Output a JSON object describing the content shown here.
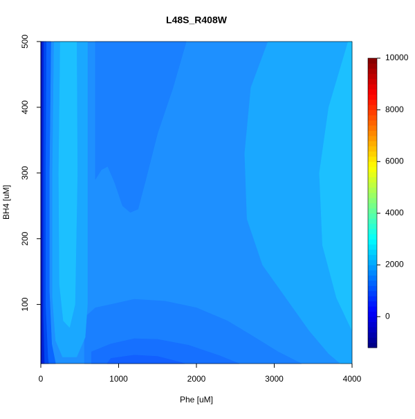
{
  "chart_data": {
    "type": "filled-contour",
    "title": "L48S_R408W",
    "x_label": "Phe [uM]",
    "y_label": "BH4 [uM]",
    "xlim": [
      0,
      4000
    ],
    "ylim": [
      10,
      500
    ],
    "xticks": [
      0,
      1000,
      2000,
      3000,
      4000
    ],
    "yticks": [
      100,
      200,
      300,
      400,
      500
    ],
    "base": {
      "level": 1800,
      "color": "#1e90ff"
    },
    "regions": [
      {
        "level": 1600,
        "color": "#1a80ff",
        "points": [
          [
            700,
            500
          ],
          [
            700,
            290
          ],
          [
            780,
            305
          ],
          [
            860,
            310
          ],
          [
            950,
            285
          ],
          [
            1050,
            250
          ],
          [
            1150,
            240
          ],
          [
            1250,
            245
          ],
          [
            1350,
            290
          ],
          [
            1500,
            360
          ],
          [
            1700,
            430
          ],
          [
            1870,
            500
          ]
        ]
      },
      {
        "level": 1600,
        "color": "#1a80ff",
        "points": [
          [
            560,
            10
          ],
          [
            560,
            80
          ],
          [
            700,
            95
          ],
          [
            900,
            100
          ],
          [
            1200,
            108
          ],
          [
            1600,
            105
          ],
          [
            2000,
            95
          ],
          [
            2400,
            75
          ],
          [
            2750,
            50
          ],
          [
            3050,
            28
          ],
          [
            3350,
            10
          ]
        ]
      },
      {
        "level": 1400,
        "color": "#1670ff",
        "points": [
          [
            650,
            10
          ],
          [
            650,
            28
          ],
          [
            900,
            40
          ],
          [
            1200,
            48
          ],
          [
            1500,
            47
          ],
          [
            1900,
            38
          ],
          [
            2300,
            22
          ],
          [
            2550,
            10
          ]
        ]
      },
      {
        "level": 1200,
        "color": "#1260ff",
        "points": [
          [
            850,
            10
          ],
          [
            900,
            18
          ],
          [
            1200,
            23
          ],
          [
            1500,
            21
          ],
          [
            1800,
            12
          ],
          [
            1850,
            10
          ]
        ]
      },
      {
        "level": 2000,
        "color": "#1aa8ff",
        "points": [
          [
            2920,
            500
          ],
          [
            2700,
            430
          ],
          [
            2620,
            330
          ],
          [
            2650,
            230
          ],
          [
            2850,
            160
          ],
          [
            3150,
            110
          ],
          [
            3450,
            60
          ],
          [
            3700,
            25
          ],
          [
            3850,
            10
          ],
          [
            4000,
            10
          ],
          [
            4000,
            500
          ]
        ]
      },
      {
        "level": 2200,
        "color": "#1cc0ff",
        "points": [
          [
            3950,
            500
          ],
          [
            3700,
            400
          ],
          [
            3580,
            300
          ],
          [
            3620,
            190
          ],
          [
            3800,
            110
          ],
          [
            4000,
            60
          ],
          [
            4000,
            500
          ]
        ]
      },
      {
        "level": 2000,
        "color": "#1aa8ff",
        "points": [
          [
            170,
            500
          ],
          [
            150,
            300
          ],
          [
            150,
            110
          ],
          [
            190,
            45
          ],
          [
            280,
            20
          ],
          [
            460,
            20
          ],
          [
            570,
            50
          ],
          [
            600,
            100
          ],
          [
            600,
            500
          ]
        ]
      },
      {
        "level": 2200,
        "color": "#1cc0ff",
        "points": [
          [
            250,
            500
          ],
          [
            230,
            300
          ],
          [
            240,
            130
          ],
          [
            290,
            75
          ],
          [
            370,
            65
          ],
          [
            440,
            100
          ],
          [
            470,
            300
          ],
          [
            460,
            500
          ]
        ]
      },
      {
        "level": 1400,
        "color": "#0a66ff",
        "points": [
          [
            0,
            10
          ],
          [
            0,
            500
          ],
          [
            130,
            500
          ],
          [
            110,
            300
          ],
          [
            110,
            120
          ],
          [
            140,
            40
          ],
          [
            190,
            10
          ]
        ]
      },
      {
        "level": 1000,
        "color": "#0048f0",
        "points": [
          [
            0,
            10
          ],
          [
            0,
            500
          ],
          [
            70,
            500
          ],
          [
            60,
            300
          ],
          [
            60,
            100
          ],
          [
            90,
            20
          ],
          [
            100,
            10
          ]
        ]
      },
      {
        "level": 600,
        "color": "#0024d8",
        "points": [
          [
            0,
            10
          ],
          [
            0,
            500
          ],
          [
            35,
            500
          ],
          [
            30,
            300
          ],
          [
            30,
            80
          ],
          [
            45,
            10
          ]
        ]
      },
      {
        "level": 200,
        "color": "#0010b8",
        "points": [
          [
            0,
            10
          ],
          [
            0,
            500
          ],
          [
            12,
            500
          ],
          [
            10,
            300
          ],
          [
            12,
            10
          ]
        ]
      }
    ],
    "colorbar": {
      "zlim": [
        -1200,
        10000
      ],
      "zticks": [
        0,
        2000,
        4000,
        6000,
        8000,
        10000
      ],
      "palette": [
        "#00007F",
        "#0000FF",
        "#007FFF",
        "#00FFFF",
        "#7FFF7F",
        "#FFFF00",
        "#FF7F00",
        "#FF0000",
        "#7F0000"
      ],
      "bands": 56
    }
  }
}
